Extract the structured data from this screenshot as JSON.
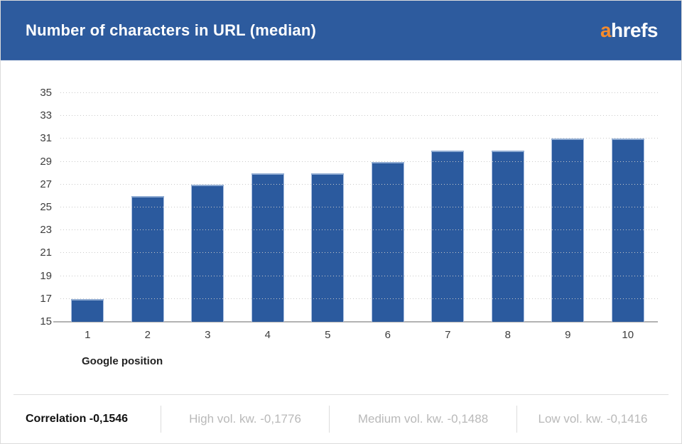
{
  "header": {
    "title": "Number of characters in URL (median)",
    "logo": {
      "prefix": "a",
      "suffix": "hrefs"
    }
  },
  "chart_data": {
    "type": "bar",
    "title": "Number of characters in URL (median)",
    "categories": [
      "1",
      "2",
      "3",
      "4",
      "5",
      "6",
      "7",
      "8",
      "9",
      "10"
    ],
    "values": [
      17,
      26,
      27,
      28,
      28,
      29,
      30,
      30,
      31,
      31
    ],
    "xlabel": "Google position",
    "ylabel": "",
    "ylim": [
      15,
      35
    ],
    "yticks": [
      15,
      17,
      19,
      21,
      23,
      25,
      27,
      29,
      31,
      33,
      35
    ],
    "grid": "horizontal-dotted",
    "legend": "none",
    "bar_color": "#2b5a9e"
  },
  "footer": {
    "items": [
      {
        "label": "Correlation -0,1546"
      },
      {
        "label": "High vol. kw. -0,1776"
      },
      {
        "label": "Medium vol. kw. -0,1488"
      },
      {
        "label": "Low vol. kw. -0,1416"
      }
    ]
  },
  "colors": {
    "header_bg": "#2d5b9e",
    "bar": "#2b5a9e",
    "logo_accent": "#f68b2c",
    "muted_text": "#b9b9b9"
  }
}
